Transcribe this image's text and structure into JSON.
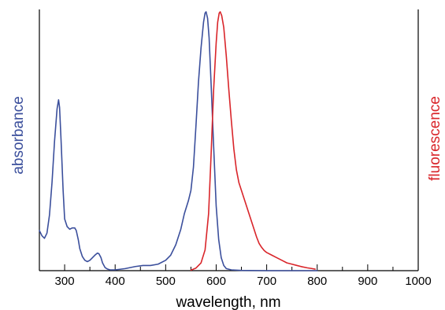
{
  "chart_data": {
    "type": "line",
    "title": "",
    "xlabel": "wavelength, nm",
    "ylabel_left": "absorbance",
    "ylabel_right": "fluorescence",
    "xlim": [
      250,
      1000
    ],
    "ylim": [
      0,
      1
    ],
    "x_ticks": [
      300,
      400,
      500,
      600,
      700,
      800,
      900,
      1000
    ],
    "y_ticks_shown": false,
    "grid": false,
    "colors": {
      "absorbance": "#3b4f9c",
      "fluorescence": "#d9252a"
    },
    "series": [
      {
        "name": "absorbance",
        "x": [
          250,
          255,
          260,
          265,
          270,
          275,
          280,
          285,
          288,
          290,
          293,
          297,
          300,
          305,
          310,
          315,
          320,
          323,
          327,
          330,
          335,
          340,
          345,
          350,
          355,
          360,
          365,
          368,
          372,
          375,
          380,
          385,
          390,
          400,
          420,
          440,
          455,
          470,
          485,
          500,
          510,
          520,
          530,
          537,
          545,
          550,
          555,
          560,
          565,
          570,
          575,
          578,
          580,
          583,
          586,
          590,
          595,
          600,
          605,
          610,
          615,
          620,
          630,
          650,
          700,
          800
        ],
        "y": [
          0.155,
          0.135,
          0.125,
          0.145,
          0.215,
          0.34,
          0.5,
          0.625,
          0.66,
          0.63,
          0.5,
          0.31,
          0.2,
          0.17,
          0.16,
          0.165,
          0.165,
          0.155,
          0.12,
          0.085,
          0.055,
          0.04,
          0.035,
          0.04,
          0.05,
          0.06,
          0.068,
          0.065,
          0.05,
          0.03,
          0.012,
          0.006,
          0.003,
          0.003,
          0.008,
          0.016,
          0.02,
          0.02,
          0.025,
          0.04,
          0.06,
          0.1,
          0.16,
          0.22,
          0.27,
          0.31,
          0.4,
          0.56,
          0.73,
          0.86,
          0.96,
          0.995,
          1.0,
          0.975,
          0.9,
          0.72,
          0.48,
          0.25,
          0.12,
          0.05,
          0.02,
          0.008,
          0.003,
          0.001,
          0,
          0
        ]
      },
      {
        "name": "fluorescence",
        "x": [
          550,
          560,
          570,
          578,
          585,
          590,
          595,
          600,
          603,
          606,
          608,
          611,
          615,
          620,
          625,
          630,
          635,
          640,
          645,
          650,
          655,
          660,
          665,
          670,
          675,
          680,
          685,
          690,
          695,
          700,
          710,
          720,
          730,
          740,
          750,
          760,
          770,
          780,
          790,
          796
        ],
        "y": [
          0.002,
          0.01,
          0.03,
          0.08,
          0.22,
          0.45,
          0.7,
          0.88,
          0.96,
          0.995,
          1.0,
          0.985,
          0.94,
          0.83,
          0.7,
          0.58,
          0.47,
          0.39,
          0.34,
          0.31,
          0.28,
          0.25,
          0.22,
          0.19,
          0.16,
          0.13,
          0.105,
          0.09,
          0.078,
          0.07,
          0.06,
          0.05,
          0.04,
          0.03,
          0.025,
          0.02,
          0.015,
          0.011,
          0.008,
          0.006
        ]
      }
    ]
  }
}
